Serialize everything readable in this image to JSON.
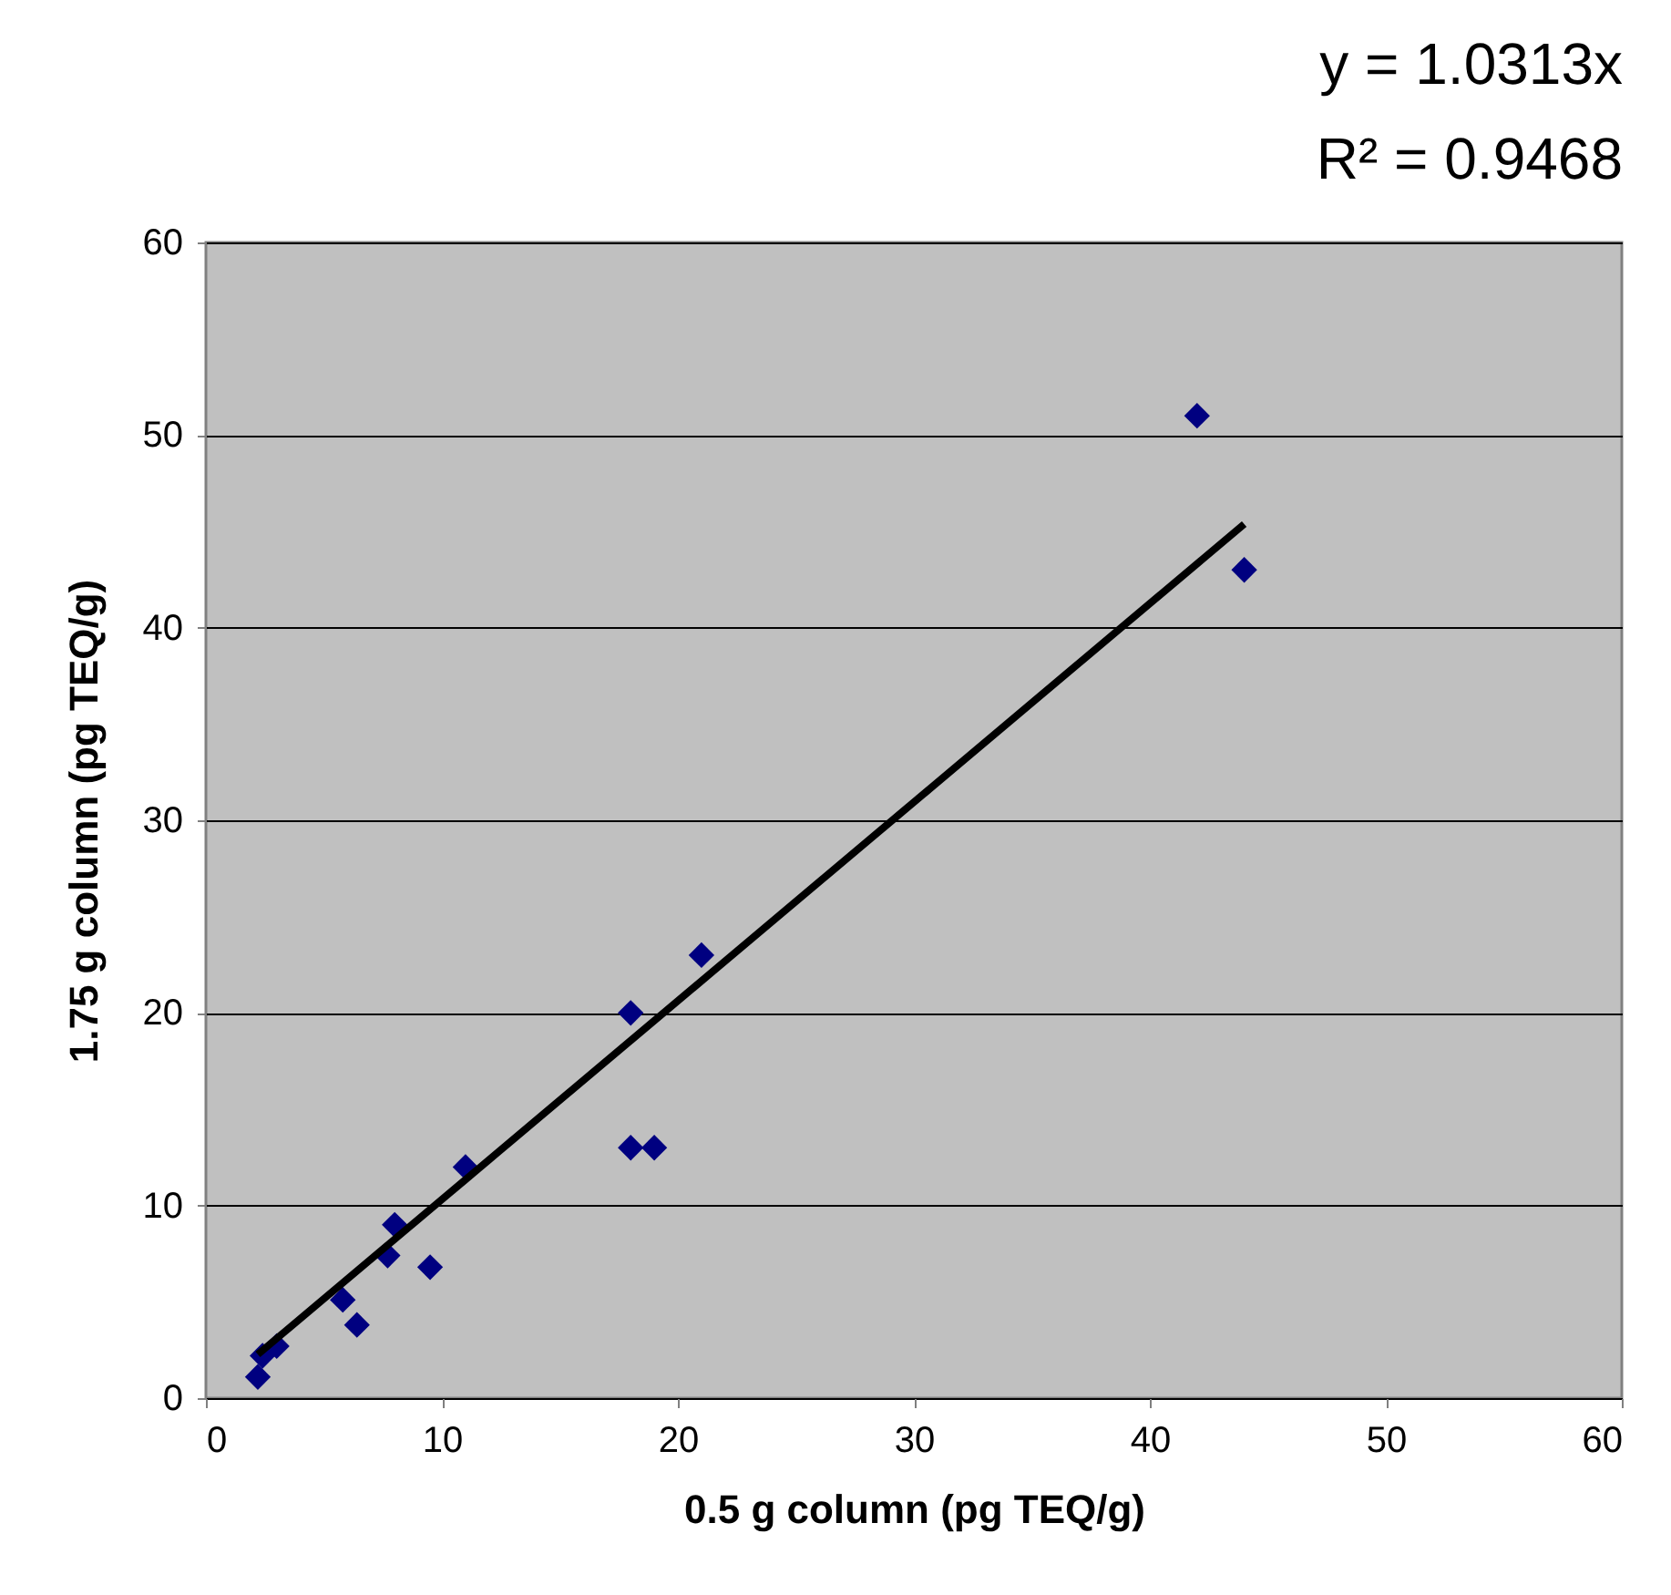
{
  "chart_data": {
    "type": "scatter",
    "xlabel": "0.5 g column (pg TEQ/g)",
    "ylabel": "1.75 g column (pg TEQ/g)",
    "annotations": [
      "y = 1.0313x",
      "R² = 0.9468"
    ],
    "series": [
      {
        "color": "#000080",
        "marker": "diamond",
        "x": [
          2.2,
          2.4,
          3,
          5.8,
          6.4,
          7.7,
          8,
          9.5,
          11,
          18,
          19,
          18,
          21,
          42,
          44
        ],
        "values": [
          1.1,
          2.2,
          2.7,
          5.1,
          3.8,
          7.4,
          9,
          6.8,
          12,
          13,
          13,
          20,
          23,
          51,
          43
        ]
      },
      {
        "type": "line",
        "color": "#000000",
        "x": [
          2.2,
          44
        ],
        "values": [
          2.27,
          45.38
        ]
      }
    ],
    "xlim": [
      0,
      60
    ],
    "xticks": [
      0,
      10,
      20,
      30,
      40,
      50,
      60
    ],
    "ylim": [
      0,
      60
    ],
    "yticks": [
      0,
      10,
      20,
      30,
      40,
      50,
      60
    ],
    "grid": "y"
  }
}
